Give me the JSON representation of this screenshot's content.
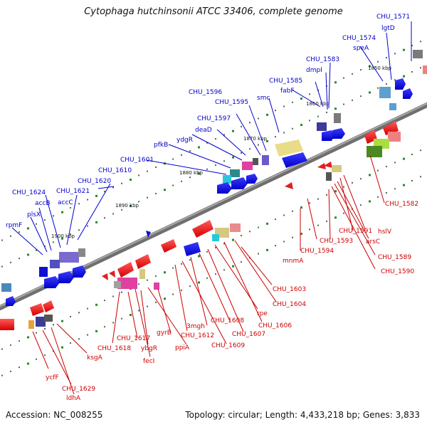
{
  "title": "Cytophaga hutchinsonii ATCC 33406, complete genome",
  "footer": {
    "accession": "Accession: NC_008255",
    "topology": "Topology: circular; Length: 4,433,218 bp; Genes: 3,833"
  },
  "colors": {
    "forward_label": "#0000cc",
    "reverse_label": "#cc0000",
    "backbone": "#8a8a8a"
  },
  "scale_labels": [
    "1850 kbp",
    "1860 kbp",
    "1870 kbp",
    "1880 kbp",
    "1890 kbp",
    "1900 kbp"
  ],
  "forward_labels": [
    "CHU_1571",
    "lgtD",
    "CHU_1574",
    "speA",
    "CHU_1583",
    "dmpI",
    "CHU_1585",
    "fabF",
    "smc",
    "CHU_1595",
    "CHU_1596",
    "CHU_1597",
    "deaD",
    "ydgR",
    "pfkB",
    "CHU_1601",
    "CHU_1610",
    "CHU_1620",
    "CHU_1621",
    "accC",
    "CHU_1624",
    "accB",
    "plsX",
    "rpmF"
  ],
  "reverse_labels": [
    "CHU_1582",
    "hslV",
    "CHU_1591",
    "arsC",
    "CHU_1589",
    "CHU_1590",
    "CHU_1593",
    "CHU_1594",
    "mnmA",
    "CHU_1603",
    "CHU_1604",
    "CHU_1606",
    "rpe",
    "CHU_1607",
    "CHU_1608",
    "3mgh",
    "CHU_1609",
    "CHU_1612",
    "gyrB",
    "ppiA",
    "ybgR",
    "fecI",
    "CHU_1617",
    "CHU_1618",
    "ksgA",
    "ycfF",
    "CHU_1629",
    "ldhA"
  ]
}
